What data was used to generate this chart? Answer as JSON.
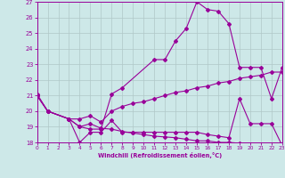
{
  "xlabel": "Windchill (Refroidissement éolien,°C)",
  "bg_color": "#cde8e8",
  "line_color": "#990099",
  "grid_color": "#b0c8c8",
  "ylim": [
    18,
    27
  ],
  "xlim": [
    0,
    23
  ],
  "yticks": [
    18,
    19,
    20,
    21,
    22,
    23,
    24,
    25,
    26,
    27
  ],
  "xticks": [
    0,
    1,
    2,
    3,
    4,
    5,
    6,
    7,
    8,
    9,
    10,
    11,
    12,
    13,
    14,
    15,
    16,
    17,
    18,
    19,
    20,
    21,
    22,
    23
  ],
  "line1_x": [
    0,
    1,
    3,
    4,
    5,
    6,
    7,
    8,
    11,
    12,
    13,
    14,
    15,
    16,
    17,
    18,
    19,
    20,
    21,
    22,
    23
  ],
  "line1_y": [
    21.1,
    20.0,
    19.5,
    19.0,
    18.85,
    18.85,
    21.1,
    21.5,
    23.3,
    23.3,
    24.5,
    25.3,
    27.0,
    26.5,
    26.4,
    25.6,
    22.8,
    22.8,
    22.8,
    20.8,
    22.8
  ],
  "line2_x": [
    0,
    1,
    3,
    4,
    5,
    6,
    7,
    8,
    9,
    10,
    11,
    12,
    13,
    14,
    15,
    16,
    17,
    18,
    19,
    20,
    21,
    22,
    23
  ],
  "line2_y": [
    21.0,
    20.0,
    19.5,
    19.5,
    19.7,
    19.3,
    20.0,
    20.3,
    20.5,
    20.6,
    20.8,
    21.0,
    21.2,
    21.3,
    21.5,
    21.6,
    21.8,
    21.9,
    22.1,
    22.2,
    22.3,
    22.5,
    22.5
  ],
  "line3_x": [
    0,
    1,
    3,
    4,
    5,
    6,
    7,
    8,
    9,
    10,
    11,
    12,
    13,
    14,
    15,
    16,
    17,
    18,
    19,
    20,
    21,
    22,
    23
  ],
  "line3_y": [
    21.0,
    20.0,
    19.5,
    18.0,
    18.65,
    18.65,
    19.4,
    18.65,
    18.65,
    18.65,
    18.65,
    18.65,
    18.65,
    18.65,
    18.65,
    18.5,
    18.4,
    18.3,
    20.8,
    19.2,
    19.2,
    19.2,
    17.8
  ],
  "line4_x": [
    0,
    1,
    3,
    4,
    5,
    6,
    7,
    8,
    9,
    10,
    11,
    12,
    13,
    14,
    15,
    16,
    17,
    18,
    19,
    20,
    21,
    22,
    23
  ],
  "line4_y": [
    21.0,
    20.0,
    19.5,
    19.0,
    19.2,
    18.9,
    18.85,
    18.7,
    18.6,
    18.5,
    18.4,
    18.35,
    18.3,
    18.2,
    18.1,
    18.1,
    18.0,
    18.0,
    17.95,
    17.9,
    17.85,
    17.8,
    17.8
  ]
}
